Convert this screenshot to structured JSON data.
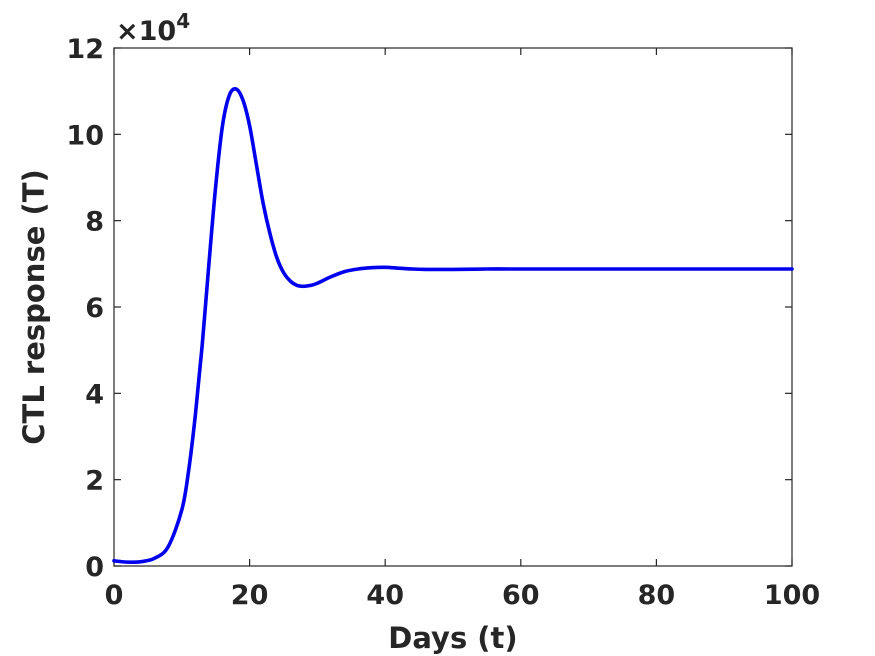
{
  "chart_data": {
    "type": "line",
    "title": "",
    "xlabel": "Days (t)",
    "ylabel": "CTL response (T)",
    "xlim": [
      0,
      100
    ],
    "ylim": [
      0,
      120000
    ],
    "x_ticks": [
      "0",
      "20",
      "40",
      "60",
      "80",
      "100"
    ],
    "y_ticks": [
      "0",
      "2",
      "4",
      "6",
      "8",
      "10",
      "12"
    ],
    "y_multiplier": {
      "prefix": "×10",
      "exponent": "4"
    },
    "grid": false,
    "line_color": "#0000ee",
    "series": [
      {
        "x": [
          0,
          2,
          4,
          6,
          8,
          10,
          11,
          12,
          13,
          14,
          15,
          16,
          17,
          18,
          19,
          20,
          21,
          22,
          23,
          24,
          25,
          26,
          27,
          28,
          29,
          30,
          32,
          34,
          36,
          38,
          40,
          42,
          44,
          46,
          48,
          50,
          55,
          60,
          70,
          80,
          90,
          100
        ],
        "y": [
          1200,
          900,
          1000,
          1800,
          4500,
          13000,
          22000,
          35000,
          51000,
          70000,
          88000,
          102000,
          109000,
          110500,
          108000,
          102000,
          93000,
          84000,
          77000,
          71500,
          68000,
          66000,
          65000,
          64800,
          65000,
          65500,
          67000,
          68200,
          68800,
          69100,
          69200,
          69000,
          68800,
          68700,
          68700,
          68700,
          68800,
          68800,
          68800,
          68800,
          68800,
          68800
        ]
      }
    ]
  }
}
